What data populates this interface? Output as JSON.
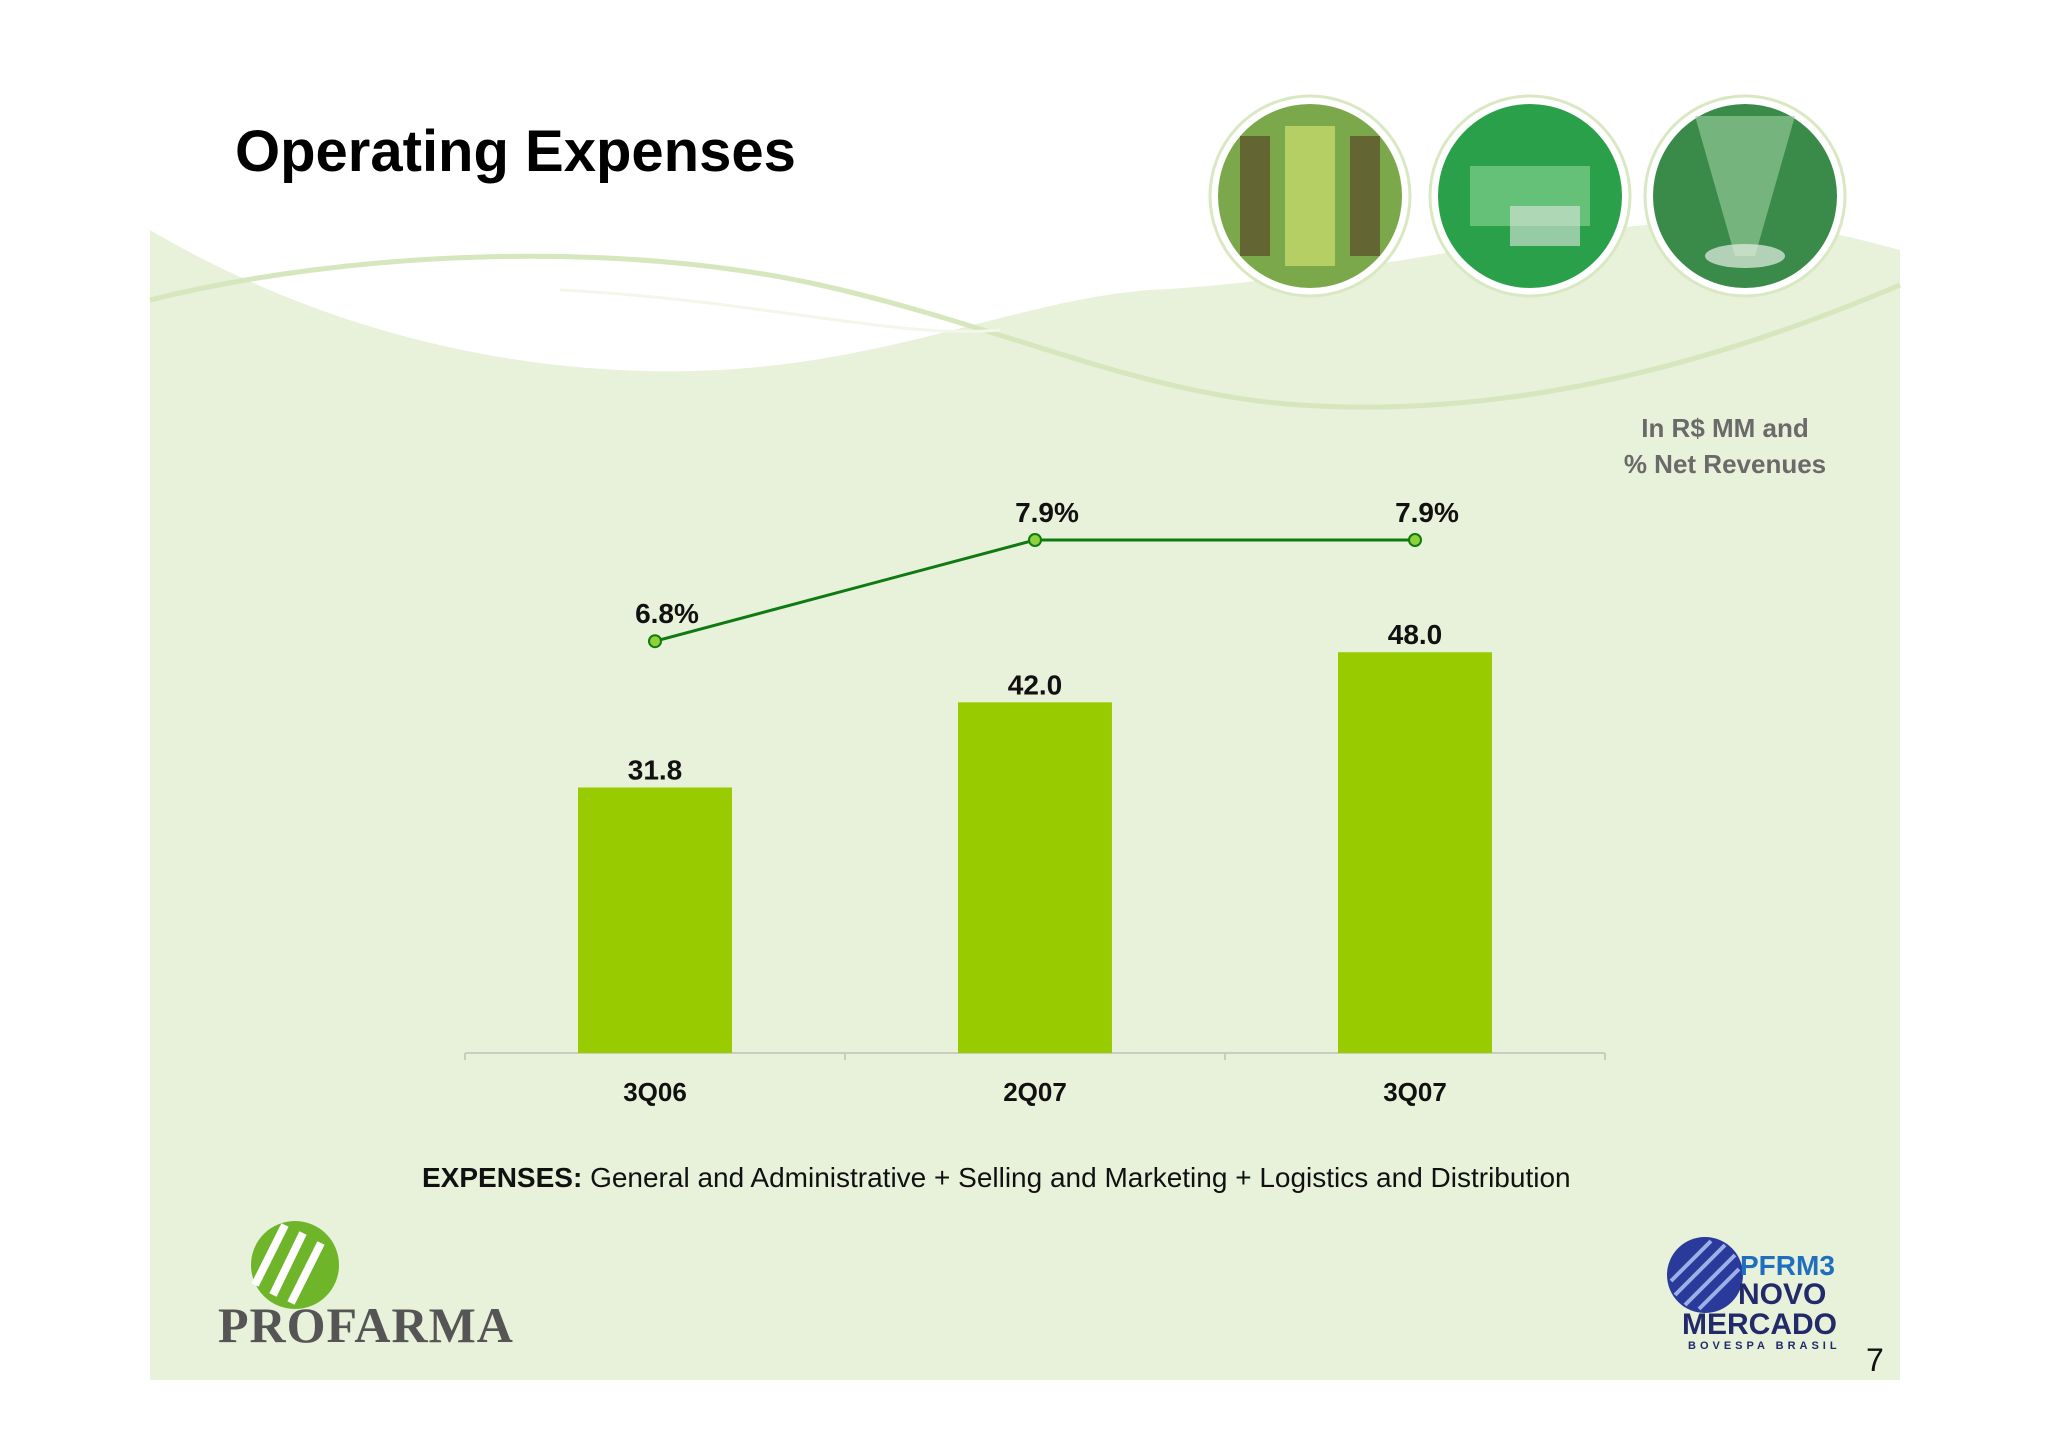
{
  "header": {
    "title": "Operating Expenses"
  },
  "units_note": {
    "line1": "In R$ MM and",
    "line2": "% Net Revenues"
  },
  "footer": {
    "expenses_label": "EXPENSES:",
    "expenses_text": "General and Administrative + Selling and Marketing + Logistics and Distribution",
    "page_number": "7",
    "company_logo_text": "PROFARMA",
    "market_logo": {
      "line1": "PFRM3",
      "line2": "NOVO",
      "line3": "MERCADO",
      "line4": "BOVESPA BRASIL"
    }
  },
  "colors": {
    "bar": "#99cc00",
    "line": "#0f7a12",
    "marker": "#8fd13a",
    "background": "#e8f1d9",
    "wave": "#d9e8c2"
  },
  "chart_data": {
    "type": "bar",
    "categories": [
      "3Q06",
      "2Q07",
      "3Q07"
    ],
    "series": [
      {
        "type": "bar",
        "values": [
          31.8,
          42.0,
          48.0
        ],
        "labels": [
          "31.8",
          "42.0",
          "48.0"
        ]
      },
      {
        "type": "line",
        "values": [
          6.8,
          7.9,
          7.9
        ],
        "labels": [
          "6.8%",
          "7.9%",
          "7.9%"
        ]
      }
    ],
    "title": "Operating Expenses",
    "ylim": [
      0,
      55
    ],
    "grid": false,
    "legend": "none"
  }
}
